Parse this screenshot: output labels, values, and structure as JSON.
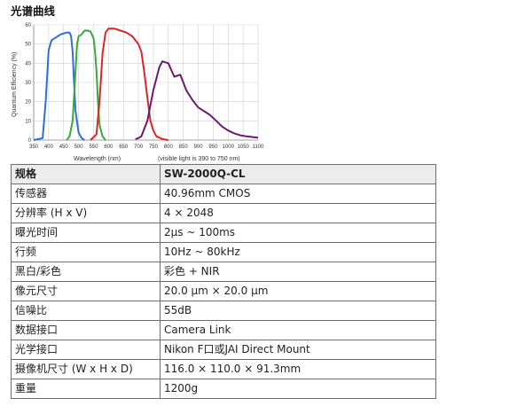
{
  "heading": "光谱曲线",
  "chart_data": {
    "type": "line",
    "xlabel": "Wavelength (nm)",
    "ylabel": "Quantum Efficiency (%)",
    "annotation": "(visible light is 390 to 750 nm)",
    "xlim": [
      350,
      1100
    ],
    "ylim": [
      0,
      60
    ],
    "x_ticks": [
      350,
      400,
      450,
      500,
      550,
      600,
      650,
      700,
      750,
      800,
      850,
      900,
      950,
      1000,
      1050,
      1100
    ],
    "y_ticks": [
      0,
      10,
      20,
      30,
      40,
      50,
      60
    ],
    "grid": true,
    "legend": "none",
    "series": [
      {
        "color": "#2f6fd6",
        "x": [
          350,
          380,
          390,
          400,
          410,
          420,
          430,
          440,
          450,
          460,
          470,
          475,
          480,
          485,
          490,
          500,
          510,
          520
        ],
        "y": [
          0,
          1,
          20,
          47,
          52,
          53,
          54,
          55,
          55.5,
          56,
          56,
          54,
          46,
          30,
          15,
          4,
          1,
          0
        ]
      },
      {
        "color": "#3aa83a",
        "x": [
          460,
          470,
          480,
          490,
          495,
          500,
          510,
          520,
          530,
          540,
          550,
          555,
          560,
          565,
          570,
          580,
          590
        ],
        "y": [
          0,
          2,
          10,
          36,
          50,
          54,
          55,
          57,
          57,
          56.5,
          53,
          46,
          36,
          20,
          8,
          2,
          0
        ]
      },
      {
        "color": "#d8262b",
        "x": [
          540,
          560,
          570,
          580,
          590,
          600,
          620,
          640,
          660,
          680,
          700,
          710,
          720,
          730,
          740,
          750,
          760,
          780,
          800
        ],
        "y": [
          0,
          3,
          20,
          45,
          56,
          58,
          58,
          57,
          56,
          54,
          50,
          46,
          35,
          22,
          10,
          5,
          2,
          0.5,
          0
        ]
      },
      {
        "color": "#6a1a6a",
        "x": [
          690,
          700,
          710,
          730,
          750,
          770,
          780,
          800,
          820,
          840,
          850,
          860,
          880,
          900,
          920,
          940,
          960,
          980,
          1000,
          1020,
          1040,
          1060,
          1080,
          1100
        ],
        "y": [
          0.5,
          1,
          2,
          10,
          26,
          38,
          41,
          40,
          33,
          34,
          30,
          26,
          21,
          17,
          15,
          13,
          10,
          7,
          5,
          3.5,
          2.5,
          2,
          1.6,
          1.2
        ]
      }
    ]
  },
  "spec_table": {
    "header": [
      "规格",
      "SW-2000Q-CL"
    ],
    "rows": [
      [
        "传感器",
        "40.96mm CMOS"
      ],
      [
        "分辨率 (H x V)",
        "4 × 2048"
      ],
      [
        "曝光时间",
        "2μs ~ 100ms"
      ],
      [
        "行频",
        "10Hz ~ 80kHz"
      ],
      [
        "黑白/彩色",
        "彩色 + NIR"
      ],
      [
        "像元尺寸",
        "20.0 μm × 20.0 μm"
      ],
      [
        "信噪比",
        "55dB"
      ],
      [
        "数据接口",
        "Camera Link"
      ],
      [
        "光学接口",
        "Nikon F口或JAI Direct Mount"
      ],
      [
        "摄像机尺寸 (W x H x D)",
        "116.0 × 110.0 × 91.3mm"
      ],
      [
        "重量",
        "1200g"
      ]
    ]
  }
}
